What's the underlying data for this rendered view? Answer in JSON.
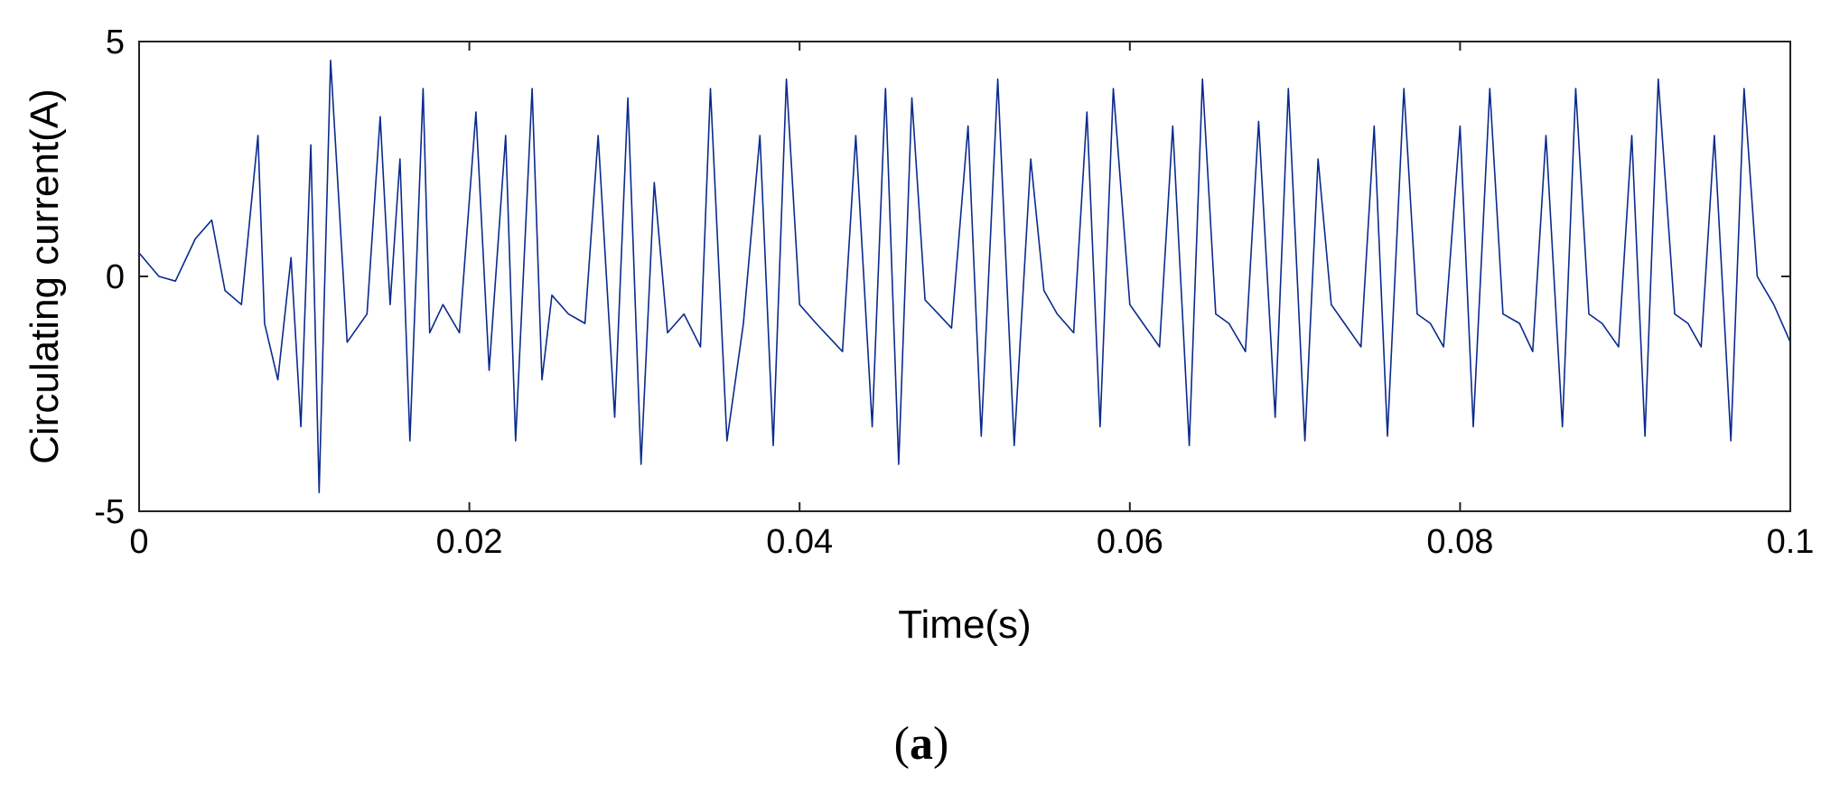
{
  "chart_data": {
    "type": "line",
    "panel_label_prefix": "(",
    "panel_label_letter": "a",
    "panel_label_suffix": ")",
    "xlabel": "Time(s)",
    "ylabel": "Circulating current(A)",
    "xlim": [
      0,
      0.1
    ],
    "ylim": [
      -5,
      5
    ],
    "xticks": [
      0,
      0.02,
      0.04,
      0.06,
      0.08,
      0.1
    ],
    "xtick_labels": [
      "0",
      "0.02",
      "0.04",
      "0.06",
      "0.08",
      "0.1"
    ],
    "yticks": [
      -5,
      0,
      5
    ],
    "ytick_labels": [
      "-5",
      "0",
      "5"
    ],
    "grid": false,
    "line_color": "#0a2a8c",
    "series": [
      {
        "x": [
          0,
          0.0012,
          0.0022,
          0.0034,
          0.0044,
          0.0052,
          0.0062,
          0.0072,
          0.0076,
          0.0084,
          0.0092,
          0.0098,
          0.0104,
          0.0109,
          0.0116,
          0.0126,
          0.0138,
          0.0146,
          0.0152,
          0.0158,
          0.0164,
          0.0172,
          0.0176,
          0.0184,
          0.0194,
          0.0204,
          0.0212,
          0.0222,
          0.0228,
          0.0238,
          0.0244,
          0.025,
          0.026,
          0.027,
          0.0278,
          0.0288,
          0.0296,
          0.0304,
          0.0312,
          0.032,
          0.033,
          0.034,
          0.0346,
          0.0356,
          0.0366,
          0.0376,
          0.0384,
          0.0392,
          0.04,
          0.041,
          0.0418,
          0.0426,
          0.0434,
          0.0444,
          0.0452,
          0.046,
          0.0468,
          0.0476,
          0.0484,
          0.0492,
          0.0502,
          0.051,
          0.052,
          0.053,
          0.054,
          0.0548,
          0.0556,
          0.0566,
          0.0574,
          0.0582,
          0.059,
          0.06,
          0.0608,
          0.0618,
          0.0626,
          0.0636,
          0.0644,
          0.0652,
          0.066,
          0.067,
          0.0678,
          0.0688,
          0.0696,
          0.0706,
          0.0714,
          0.0722,
          0.073,
          0.074,
          0.0748,
          0.0756,
          0.0766,
          0.0774,
          0.0782,
          0.079,
          0.08,
          0.0808,
          0.0818,
          0.0826,
          0.0836,
          0.0844,
          0.0852,
          0.0862,
          0.087,
          0.0878,
          0.0886,
          0.0896,
          0.0904,
          0.0912,
          0.092,
          0.093,
          0.0938,
          0.0946,
          0.0954,
          0.0964,
          0.0972,
          0.098,
          0.099,
          0.1
        ],
        "y": [
          0.5,
          0,
          -0.1,
          0.8,
          1.2,
          -0.3,
          -0.6,
          3,
          -1,
          -2.2,
          0.4,
          -3.2,
          2.8,
          -4.6,
          4.6,
          -1.4,
          -0.8,
          3.4,
          -0.6,
          2.5,
          -3.5,
          4,
          -1.2,
          -0.6,
          -1.2,
          3.5,
          -2,
          3,
          -3.5,
          4,
          -2.2,
          -0.4,
          -0.8,
          -1,
          3,
          -3,
          3.8,
          -4,
          2,
          -1.2,
          -0.8,
          -1.5,
          4,
          -3.5,
          -1,
          3,
          -3.6,
          4.2,
          -0.6,
          -1,
          -1.3,
          -1.6,
          3,
          -3.2,
          4,
          -4,
          3.8,
          -0.5,
          -0.8,
          -1.1,
          3.2,
          -3.4,
          4.2,
          -3.6,
          2.5,
          -0.3,
          -0.8,
          -1.2,
          3.5,
          -3.2,
          4,
          -0.6,
          -1,
          -1.5,
          3.2,
          -3.6,
          4.2,
          -0.8,
          -1,
          -1.6,
          3.3,
          -3,
          4,
          -3.5,
          2.5,
          -0.6,
          -1,
          -1.5,
          3.2,
          -3.4,
          4,
          -0.8,
          -1,
          -1.5,
          3.2,
          -3.2,
          4,
          -0.8,
          -1,
          -1.6,
          3,
          -3.2,
          4,
          -0.8,
          -1,
          -1.5,
          3,
          -3.4,
          4.2,
          -0.8,
          -1,
          -1.5,
          3,
          -3.5,
          4,
          0,
          -0.6,
          -1.4
        ]
      }
    ]
  }
}
